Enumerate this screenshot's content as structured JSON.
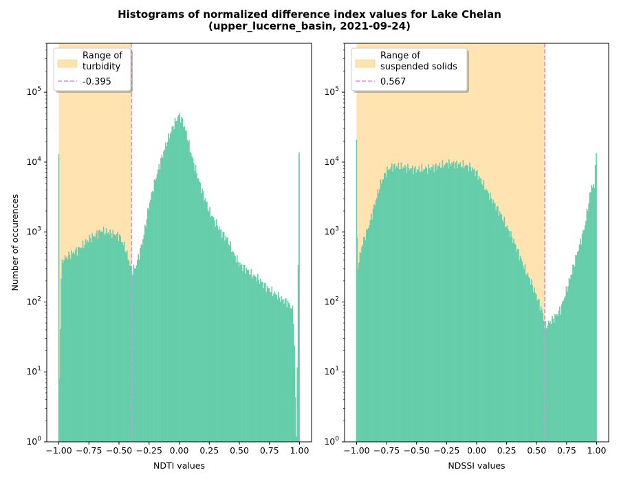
{
  "figure": {
    "title_line1": "Histograms of normalized difference index values for Lake Chelan",
    "title_line2": "(upper_lucerne_basin, 2021-09-24)"
  },
  "colors": {
    "histogram": "#66cdaa",
    "range_fill": "#ffa500",
    "range_alpha": 0.3,
    "threshold_line": "#ee82ee"
  },
  "chart_data": [
    {
      "type": "histogram",
      "xlabel": "NDTI values",
      "ylabel": "Number of occurences",
      "xlim": [
        -1.1,
        1.1
      ],
      "ylim": [
        1,
        500000
      ],
      "yscale": "log",
      "x_ticks": [
        -1.0,
        -0.75,
        -0.5,
        -0.25,
        0.0,
        0.25,
        0.5,
        0.75,
        1.0
      ],
      "x_tick_labels": [
        "−1.00",
        "−0.75",
        "−0.50",
        "−0.25",
        "0.00",
        "0.25",
        "0.50",
        "0.75",
        "1.00"
      ],
      "y_ticks": [
        1,
        10,
        100,
        1000,
        10000,
        100000
      ],
      "y_tick_labels": [
        [
          "10",
          "0"
        ],
        [
          "10",
          "1"
        ],
        [
          "10",
          "2"
        ],
        [
          "10",
          "3"
        ],
        [
          "10",
          "4"
        ],
        [
          "10",
          "5"
        ]
      ],
      "shaded_range": [
        -1.0,
        -0.395
      ],
      "threshold": -0.395,
      "legend": {
        "position": "upper left",
        "range_label_line1": "Range of",
        "range_label_line2": "turbidity",
        "threshold_label": "-0.395"
      },
      "histogram_profile": [
        [
          -1.0,
          13000
        ],
        [
          -0.997,
          7
        ],
        [
          -0.99,
          20
        ],
        [
          -0.985,
          180
        ],
        [
          -0.97,
          400
        ],
        [
          -0.93,
          450
        ],
        [
          -0.85,
          550
        ],
        [
          -0.8,
          650
        ],
        [
          -0.75,
          800
        ],
        [
          -0.7,
          900
        ],
        [
          -0.65,
          1050
        ],
        [
          -0.6,
          1000
        ],
        [
          -0.55,
          950
        ],
        [
          -0.5,
          900
        ],
        [
          -0.45,
          600
        ],
        [
          -0.42,
          400
        ],
        [
          -0.395,
          280
        ],
        [
          -0.36,
          320
        ],
        [
          -0.3,
          800
        ],
        [
          -0.25,
          2500
        ],
        [
          -0.2,
          5500
        ],
        [
          -0.15,
          11000
        ],
        [
          -0.1,
          20000
        ],
        [
          -0.05,
          33000
        ],
        [
          0.0,
          48000
        ],
        [
          0.03,
          38000
        ],
        [
          0.07,
          22000
        ],
        [
          0.1,
          13000
        ],
        [
          0.15,
          6500
        ],
        [
          0.2,
          3500
        ],
        [
          0.25,
          2000
        ],
        [
          0.3,
          1400
        ],
        [
          0.35,
          1000
        ],
        [
          0.4,
          800
        ],
        [
          0.45,
          500
        ],
        [
          0.5,
          350
        ],
        [
          0.55,
          300
        ],
        [
          0.6,
          250
        ],
        [
          0.65,
          220
        ],
        [
          0.7,
          180
        ],
        [
          0.75,
          150
        ],
        [
          0.8,
          130
        ],
        [
          0.85,
          110
        ],
        [
          0.9,
          100
        ],
        [
          0.94,
          80
        ],
        [
          0.955,
          45
        ],
        [
          0.96,
          10
        ],
        [
          0.97,
          1.5
        ],
        [
          0.975,
          1
        ],
        [
          0.996,
          12000
        ]
      ]
    },
    {
      "type": "histogram",
      "xlabel": "NDSSI values",
      "ylabel": "",
      "xlim": [
        -1.1,
        1.1
      ],
      "ylim": [
        1,
        500000
      ],
      "yscale": "log",
      "x_ticks": [
        -1.0,
        -0.75,
        -0.5,
        -0.25,
        0.0,
        0.25,
        0.5,
        0.75,
        1.0
      ],
      "x_tick_labels": [
        "−1.00",
        "−0.75",
        "−0.50",
        "−0.25",
        "0.00",
        "0.25",
        "0.50",
        "0.75",
        "1.00"
      ],
      "y_ticks": [
        1,
        10,
        100,
        1000,
        10000,
        100000
      ],
      "y_tick_labels": [
        [
          "10",
          "0"
        ],
        [
          "10",
          "1"
        ],
        [
          "10",
          "2"
        ],
        [
          "10",
          "3"
        ],
        [
          "10",
          "4"
        ],
        [
          "10",
          "5"
        ]
      ],
      "shaded_range": [
        -1.0,
        0.567
      ],
      "threshold": 0.567,
      "legend": {
        "position": "upper left",
        "range_label_line1": "Range of",
        "range_label_line2": "suspended solids",
        "threshold_label": "0.567"
      },
      "histogram_profile": [
        [
          -1.0,
          21000
        ],
        [
          -0.995,
          280
        ],
        [
          -0.98,
          400
        ],
        [
          -0.95,
          700
        ],
        [
          -0.9,
          1200
        ],
        [
          -0.85,
          2500
        ],
        [
          -0.8,
          5000
        ],
        [
          -0.75,
          7500
        ],
        [
          -0.7,
          8800
        ],
        [
          -0.6,
          8500
        ],
        [
          -0.5,
          7800
        ],
        [
          -0.4,
          8200
        ],
        [
          -0.3,
          9000
        ],
        [
          -0.25,
          9500
        ],
        [
          -0.2,
          9600
        ],
        [
          -0.1,
          9000
        ],
        [
          -0.05,
          8500
        ],
        [
          0.0,
          7000
        ],
        [
          0.05,
          5000
        ],
        [
          0.1,
          3500
        ],
        [
          0.15,
          2500
        ],
        [
          0.2,
          1800
        ],
        [
          0.25,
          1200
        ],
        [
          0.3,
          800
        ],
        [
          0.35,
          500
        ],
        [
          0.4,
          300
        ],
        [
          0.45,
          200
        ],
        [
          0.5,
          120
        ],
        [
          0.55,
          70
        ],
        [
          0.567,
          45
        ],
        [
          0.6,
          50
        ],
        [
          0.65,
          60
        ],
        [
          0.7,
          80
        ],
        [
          0.75,
          150
        ],
        [
          0.8,
          300
        ],
        [
          0.85,
          600
        ],
        [
          0.9,
          1200
        ],
        [
          0.93,
          2500
        ],
        [
          0.96,
          5000
        ],
        [
          0.98,
          4000
        ],
        [
          0.995,
          24000
        ],
        [
          1.0,
          1000
        ]
      ]
    }
  ]
}
